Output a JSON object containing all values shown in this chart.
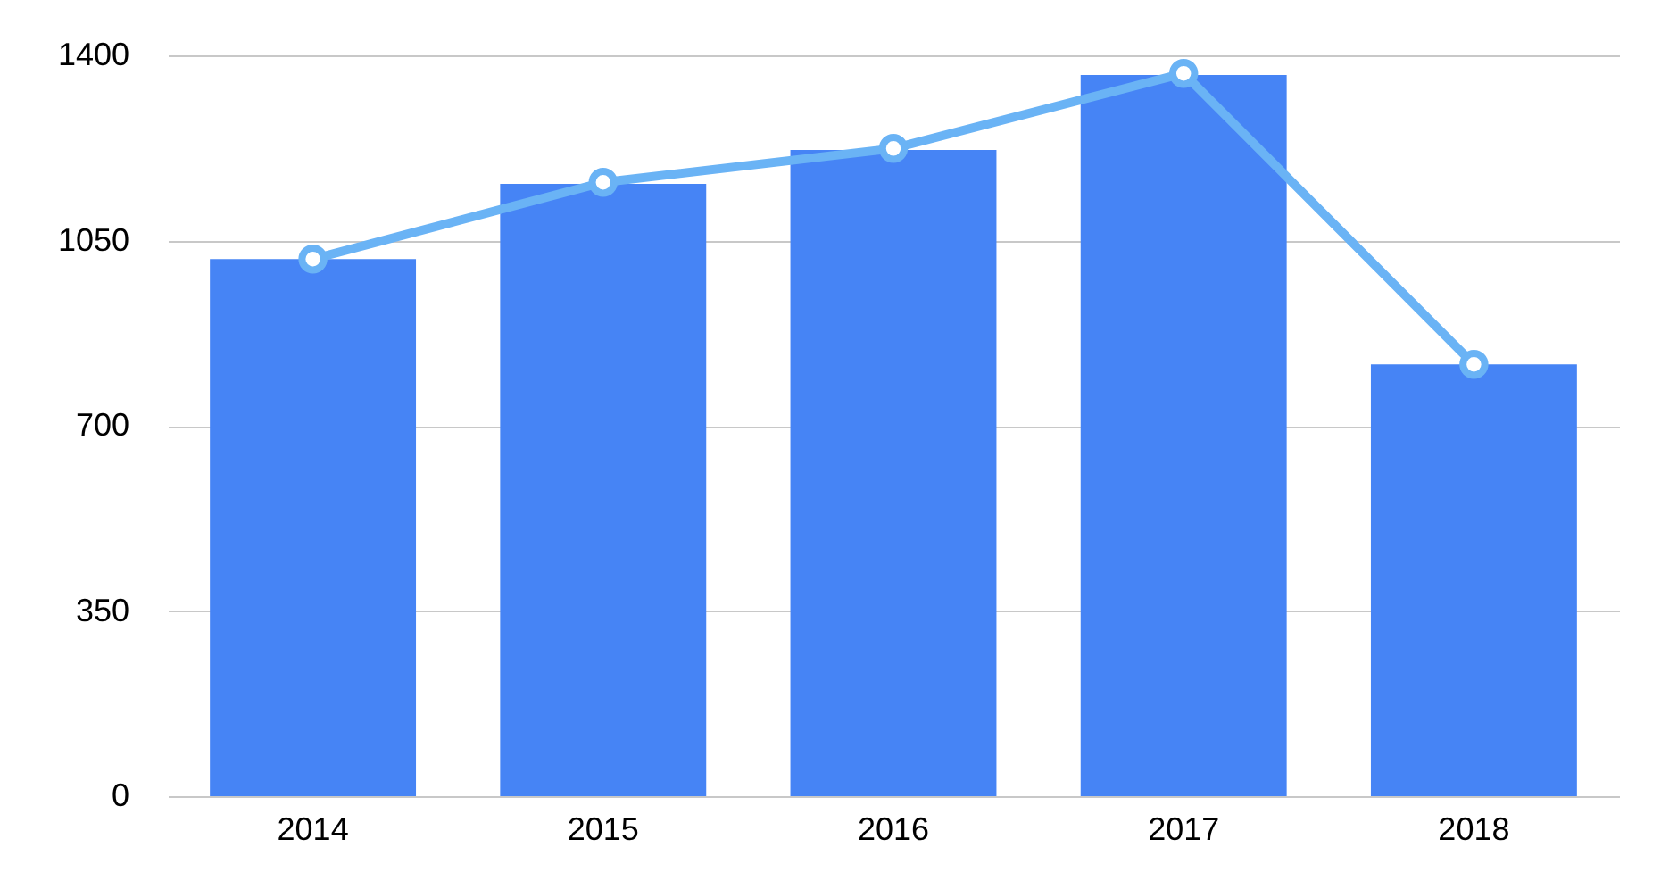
{
  "chart_data": {
    "type": "bar",
    "categories": [
      "2014",
      "2015",
      "2016",
      "2017",
      "2018"
    ],
    "series": [
      {
        "color": "#4684f5",
        "values": [
          1015,
          1157,
          1221,
          1363,
          816
        ]
      },
      {
        "type": "line",
        "color": "#6ab3f5",
        "marker": "circle",
        "values": [
          1015,
          1160,
          1224,
          1366,
          816
        ]
      }
    ],
    "ylim": [
      0,
      1400
    ],
    "yticks": [
      0,
      350,
      700,
      1050,
      1400
    ],
    "grid": "y"
  }
}
